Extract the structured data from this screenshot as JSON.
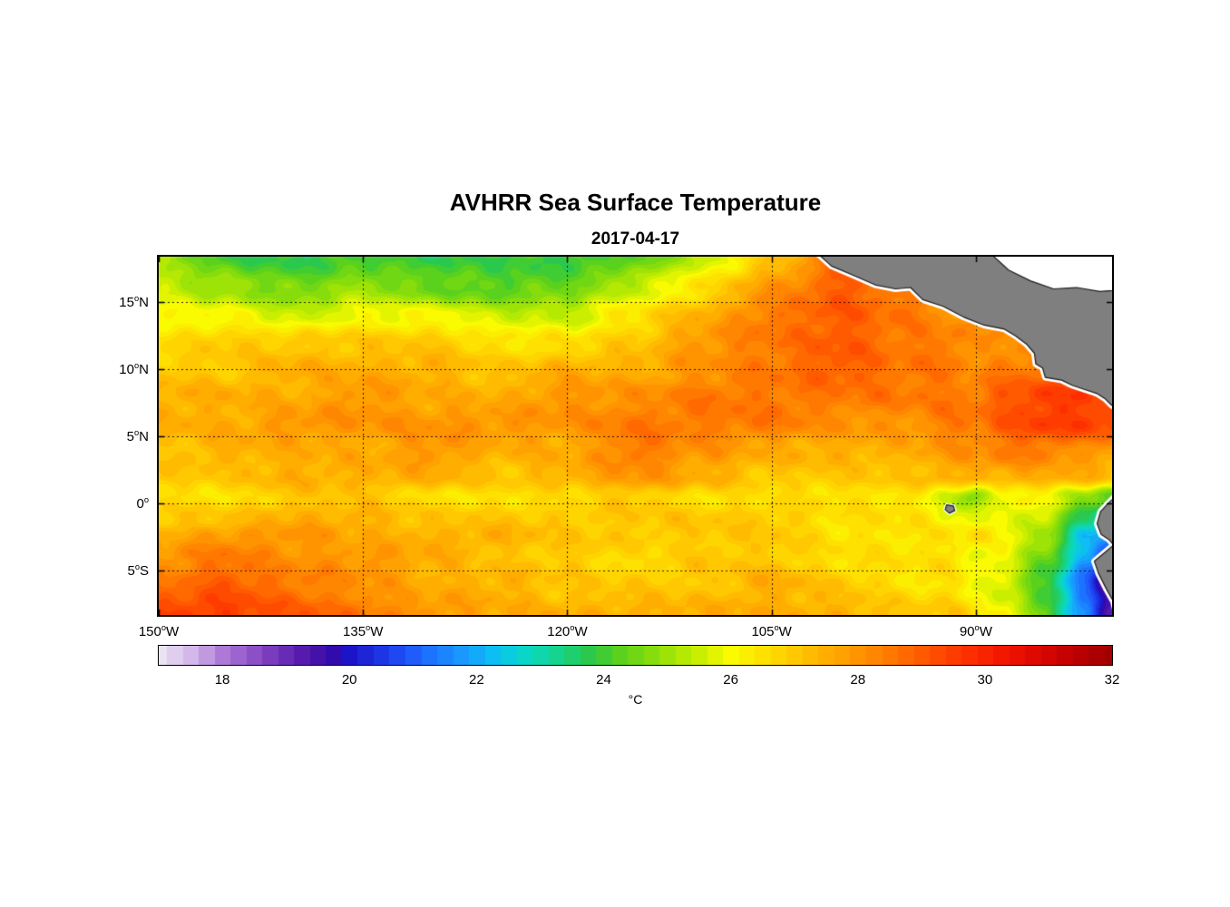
{
  "title": "AVHRR Sea Surface Temperature",
  "subtitle": "2017-04-17",
  "deg_symbol": "o",
  "colors": {
    "background": "#FFFFFF",
    "land": "#7F7F7F",
    "land_edge": "#1A1A1A",
    "coast_halo": "#FFFFFF",
    "no_data": "#FFFFFF",
    "axis": "#000000",
    "grid": "#000000"
  },
  "chart_data": {
    "type": "heatmap",
    "title": "AVHRR Sea Surface Temperature",
    "subtitle": "2017-04-17",
    "xlabel": "",
    "ylabel": "",
    "grid_on": true,
    "xlim": [
      -150,
      -80
    ],
    "ylim": [
      -8.3,
      18.4
    ],
    "x_ticks": [
      {
        "value": -150,
        "deg": "150",
        "dir": "W"
      },
      {
        "value": -135,
        "deg": "135",
        "dir": "W"
      },
      {
        "value": -120,
        "deg": "120",
        "dir": "W"
      },
      {
        "value": -105,
        "deg": "105",
        "dir": "W"
      },
      {
        "value": -90,
        "deg": "90",
        "dir": "W"
      }
    ],
    "y_ticks": [
      {
        "value": 15,
        "deg": "15",
        "dir": "N"
      },
      {
        "value": 10,
        "deg": "10",
        "dir": "N"
      },
      {
        "value": 5,
        "deg": "5",
        "dir": "N"
      },
      {
        "value": 0,
        "deg": "0",
        "dir": ""
      },
      {
        "value": -5,
        "deg": "5",
        "dir": "S"
      }
    ],
    "colorbar": {
      "min": 17,
      "max": 32,
      "ticks": [
        18,
        20,
        22,
        24,
        26,
        28,
        30,
        32
      ],
      "unit": "°C",
      "colormap": [
        [
          17,
          "#EAE4F2"
        ],
        [
          17.5,
          "#D4B8EA"
        ],
        [
          18,
          "#AC7AD6"
        ],
        [
          18.6,
          "#8546C2"
        ],
        [
          19.2,
          "#5A1DAE"
        ],
        [
          19.7,
          "#3609A6"
        ],
        [
          20,
          "#1C14C8"
        ],
        [
          20.6,
          "#1E3CEC"
        ],
        [
          21.2,
          "#1E6EFF"
        ],
        [
          21.8,
          "#189CFF"
        ],
        [
          22.3,
          "#0CC2F0"
        ],
        [
          22.8,
          "#0AD8C2"
        ],
        [
          23.3,
          "#16D488"
        ],
        [
          23.8,
          "#2CC848"
        ],
        [
          24.2,
          "#55D01E"
        ],
        [
          24.8,
          "#8CDE0A"
        ],
        [
          25.4,
          "#C0EC00"
        ],
        [
          26,
          "#FAFA00"
        ],
        [
          26.6,
          "#FFDC00"
        ],
        [
          27.2,
          "#FFBE00"
        ],
        [
          27.8,
          "#FF9E00"
        ],
        [
          28.4,
          "#FF7E00"
        ],
        [
          29,
          "#FF5A00"
        ],
        [
          29.6,
          "#FF3600"
        ],
        [
          30.2,
          "#F51900"
        ],
        [
          30.8,
          "#DC0700"
        ],
        [
          31.4,
          "#BE0000"
        ],
        [
          32,
          "#A00000"
        ]
      ]
    },
    "sst_grid": {
      "units": "degC",
      "lons": [
        -150,
        -145,
        -140,
        -135,
        -130,
        -125,
        -120,
        -115,
        -110,
        -105,
        -100,
        -95,
        -92,
        -90,
        -88,
        -85,
        -82,
        -80
      ],
      "lats": [
        18.4,
        16,
        14,
        12,
        10,
        8,
        6,
        4,
        2,
        0.5,
        -1,
        -2.5,
        -4,
        -6,
        -8.3
      ],
      "values_degC": [
        [
          25,
          24,
          23.8,
          24,
          23.8,
          24,
          23.8,
          24.2,
          25.5,
          27,
          28.5,
          29,
          29,
          28.5,
          28.5,
          28.5,
          28.5,
          28.5
        ],
        [
          25.5,
          25,
          24.5,
          25,
          24.5,
          24.2,
          24.5,
          25.5,
          26.5,
          28,
          29,
          28.5,
          28,
          28,
          28,
          28,
          28,
          28
        ],
        [
          26,
          26,
          25.5,
          26,
          26,
          25.5,
          25.5,
          26.5,
          27.5,
          28.5,
          29,
          28.5,
          28,
          28,
          28,
          28.5,
          28,
          28
        ],
        [
          26.5,
          27,
          27,
          27,
          27,
          26.5,
          26.5,
          27,
          28,
          28.5,
          29,
          28.5,
          28.5,
          28,
          28,
          28,
          27.5,
          27.5
        ],
        [
          27,
          27,
          27.5,
          27.5,
          27.5,
          27,
          27.5,
          27.5,
          28,
          28.5,
          29,
          28.5,
          28.5,
          28,
          28.5,
          28.5,
          28,
          28
        ],
        [
          27.5,
          27.5,
          27.5,
          28,
          27.5,
          27.5,
          28,
          28,
          28.5,
          28.5,
          28.5,
          28.5,
          28.5,
          28.5,
          29,
          29.5,
          29.5,
          29
        ],
        [
          27.5,
          27.5,
          28,
          28,
          28,
          28,
          28,
          28.5,
          28.5,
          28.5,
          28,
          28,
          28.5,
          28.5,
          29,
          29.5,
          29.5,
          29.5
        ],
        [
          27,
          27.5,
          27.5,
          27.5,
          28,
          27.5,
          27.5,
          28.5,
          28,
          27.5,
          27.5,
          27.5,
          28,
          28,
          28.5,
          28.5,
          28,
          28
        ],
        [
          27,
          27,
          27.5,
          27.5,
          27.5,
          27,
          27.5,
          28,
          27.5,
          27,
          27,
          27,
          27.5,
          27.5,
          27.5,
          27.5,
          27.5,
          27
        ],
        [
          26.5,
          26.5,
          27,
          27,
          26.5,
          26.5,
          26.5,
          27,
          26.5,
          26.5,
          26.5,
          26.5,
          25.5,
          24.5,
          26,
          26,
          25,
          24.2
        ],
        [
          27,
          27,
          27.5,
          27.5,
          27,
          27,
          27,
          27,
          27,
          27,
          26.5,
          26.5,
          26,
          25.8,
          26,
          25.5,
          23.5,
          22.5
        ],
        [
          27.5,
          28,
          28,
          27.5,
          27.5,
          27.5,
          27,
          27,
          27,
          27,
          26.5,
          26.5,
          26.5,
          26.5,
          26,
          25,
          22.5,
          21.5
        ],
        [
          28,
          28.5,
          28,
          28,
          27.5,
          27,
          27,
          26.5,
          27,
          27,
          26.5,
          26.5,
          26.5,
          26,
          26,
          24.5,
          22,
          20.5
        ],
        [
          28.5,
          29,
          28.5,
          28,
          27.5,
          27.5,
          27,
          27,
          27,
          27.5,
          27,
          26.5,
          26.5,
          26,
          25.5,
          24,
          21,
          19
        ],
        [
          29.5,
          29.5,
          29,
          28.5,
          28,
          27.5,
          27.5,
          27.5,
          27.5,
          27.5,
          27.5,
          27,
          27,
          26.5,
          26,
          24.5,
          21.5,
          19.5
        ]
      ]
    },
    "land": {
      "central_america": [
        [
          -101.8,
          18.8
        ],
        [
          -100.6,
          17.7
        ],
        [
          -99.2,
          17.1
        ],
        [
          -97.4,
          16.3
        ],
        [
          -95.9,
          16.0
        ],
        [
          -94.8,
          16.1
        ],
        [
          -93.9,
          15.2
        ],
        [
          -92.4,
          14.7
        ],
        [
          -90.9,
          13.9
        ],
        [
          -89.4,
          13.3
        ],
        [
          -87.9,
          13.0
        ],
        [
          -87.1,
          12.5
        ],
        [
          -86.3,
          11.9
        ],
        [
          -85.7,
          11.2
        ],
        [
          -85.6,
          10.4
        ],
        [
          -85.1,
          10.1
        ],
        [
          -84.9,
          9.4
        ],
        [
          -83.7,
          9.2
        ],
        [
          -82.9,
          8.8
        ],
        [
          -82.0,
          8.5
        ],
        [
          -81.1,
          8.2
        ],
        [
          -80.5,
          7.8
        ],
        [
          -80.0,
          7.3
        ],
        [
          -79.4,
          7.0
        ],
        [
          -78.5,
          7.6
        ],
        [
          -78.0,
          8.0
        ],
        [
          -77.5,
          19.5
        ]
      ],
      "caribbean_sea_nodata": [
        [
          -89.2,
          18.9
        ],
        [
          -87.6,
          17.4
        ],
        [
          -86.0,
          16.6
        ],
        [
          -84.3,
          16.0
        ],
        [
          -82.6,
          16.1
        ],
        [
          -80.9,
          15.8
        ],
        [
          -78.5,
          16.0
        ],
        [
          -77.8,
          19.5
        ]
      ],
      "south_america": [
        [
          -79.8,
          0.5
        ],
        [
          -80.3,
          0.0
        ],
        [
          -80.85,
          -0.6
        ],
        [
          -81.1,
          -1.5
        ],
        [
          -80.8,
          -2.3
        ],
        [
          -80.2,
          -2.7
        ],
        [
          -79.9,
          -3.1
        ],
        [
          -80.6,
          -3.7
        ],
        [
          -81.3,
          -4.3
        ],
        [
          -81.0,
          -5.2
        ],
        [
          -80.4,
          -6.4
        ],
        [
          -79.9,
          -7.3
        ],
        [
          -79.6,
          -8.6
        ],
        [
          -78.0,
          -9.0
        ],
        [
          -77.5,
          1.2
        ]
      ],
      "galapagos": [
        [
          -92.15,
          -0.1
        ],
        [
          -91.65,
          -0.18
        ],
        [
          -91.55,
          -0.52
        ],
        [
          -91.95,
          -0.72
        ],
        [
          -92.25,
          -0.45
        ]
      ]
    }
  }
}
